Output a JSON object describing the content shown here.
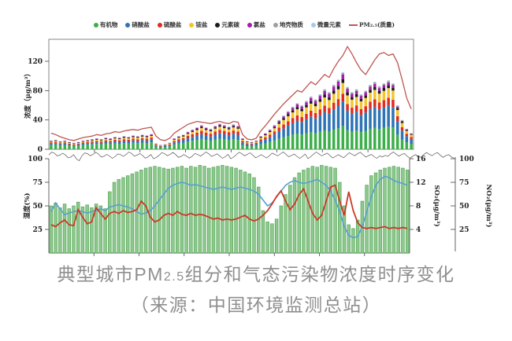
{
  "figure": {
    "caption_line1_prefix": "典型城市PM",
    "caption_line1_sub": "2.5",
    "caption_line1_suffix": "组分和气态污染物浓度时序变化",
    "caption_line2": "（来源：中国环境监测总站）"
  },
  "legend": {
    "items": [
      {
        "label": "有机物",
        "color": "#3cae4a",
        "type": "dot"
      },
      {
        "label": "硝酸盐",
        "color": "#2e74b5",
        "type": "dot"
      },
      {
        "label": "硫酸盐",
        "color": "#e02b20",
        "type": "dot"
      },
      {
        "label": "铵盐",
        "color": "#f4c430",
        "type": "dot"
      },
      {
        "label": "元素碳",
        "color": "#1a1a1a",
        "type": "dot"
      },
      {
        "label": "氯盐",
        "color": "#a21caf",
        "type": "dot"
      },
      {
        "label": "地壳物质",
        "color": "#9e9e9e",
        "type": "dot"
      },
      {
        "label": "微量元素",
        "color": "#a9c9e8",
        "type": "dot"
      },
      {
        "label": "PM₂.₅(质量)",
        "color": "#bf5650",
        "type": "line"
      }
    ]
  },
  "chart_data": [
    {
      "id": "pm25-composition",
      "type": "bar",
      "stacked": true,
      "ylabel": "浓度（μg/m³）",
      "ylim": [
        0,
        150
      ],
      "yticks": [
        0,
        40,
        80,
        120
      ],
      "x_note": "时间序列，横轴日期刻度文字过小不可辨认（80个采样点）",
      "grid": false,
      "legend_position": "top",
      "components": [
        {
          "name": "有机物",
          "color": "#3cae4a"
        },
        {
          "name": "硝酸盐",
          "color": "#2e74b5"
        },
        {
          "name": "硫酸盐",
          "color": "#e02b20"
        },
        {
          "name": "铵盐",
          "color": "#f4c430"
        },
        {
          "name": "元素碳",
          "color": "#1a1a1a"
        },
        {
          "name": "氯盐",
          "color": "#a21caf"
        },
        {
          "name": "地壳物质",
          "color": "#9e9e9e"
        },
        {
          "name": "微量元素",
          "color": "#a9c9e8"
        }
      ],
      "stack_totals": [
        12,
        13,
        11,
        12,
        10,
        9,
        10,
        12,
        13,
        14,
        15,
        14,
        16,
        15,
        17,
        16,
        18,
        17,
        19,
        18,
        20,
        19,
        21,
        8,
        6,
        7,
        9,
        15,
        18,
        20,
        24,
        27,
        30,
        33,
        30,
        28,
        32,
        35,
        33,
        31,
        34,
        32,
        15,
        11,
        10,
        12,
        18,
        22,
        27,
        33,
        40,
        46,
        52,
        58,
        63,
        60,
        66,
        72,
        68,
        75,
        82,
        78,
        88,
        95,
        105,
        85,
        78,
        82,
        75,
        80,
        88,
        92,
        86,
        90,
        94,
        90,
        60,
        40,
        28,
        22
      ],
      "composition_share_anchors": [
        {
          "at": 0.0,
          "shares": {
            "有机物": 0.5,
            "硝酸盐": 0.14,
            "硫酸盐": 0.12,
            "铵盐": 0.1,
            "元素碳": 0.06,
            "氯盐": 0.04,
            "地壳物质": 0.02,
            "微量元素": 0.02
          }
        },
        {
          "at": 0.45,
          "shares": {
            "有机物": 0.42,
            "硝酸盐": 0.2,
            "硫酸盐": 0.14,
            "铵盐": 0.12,
            "元素碳": 0.05,
            "氯盐": 0.04,
            "地壳物质": 0.02,
            "微量元素": 0.01
          }
        },
        {
          "at": 0.8,
          "shares": {
            "有机物": 0.3,
            "硝酸盐": 0.32,
            "硫酸盐": 0.1,
            "铵盐": 0.14,
            "元素碳": 0.05,
            "氯盐": 0.06,
            "地壳物质": 0.02,
            "微量元素": 0.01
          }
        },
        {
          "at": 1.0,
          "shares": {
            "有机物": 0.34,
            "硝酸盐": 0.3,
            "硫酸盐": 0.12,
            "铵盐": 0.14,
            "元素碳": 0.04,
            "氯盐": 0.03,
            "地壳物质": 0.02,
            "微量元素": 0.01
          }
        }
      ],
      "overlay_line": {
        "name": "PM₂.₅(质量)",
        "color": "#bf5650",
        "values": [
          22,
          20,
          17,
          15,
          13,
          12,
          14,
          16,
          17,
          18,
          20,
          19,
          21,
          22,
          24,
          23,
          25,
          26,
          27,
          26,
          28,
          29,
          30,
          18,
          13,
          12,
          15,
          22,
          26,
          30,
          34,
          36,
          38,
          37,
          36,
          35,
          37,
          38,
          36,
          35,
          38,
          37,
          20,
          14,
          13,
          15,
          25,
          32,
          40,
          48,
          55,
          62,
          68,
          74,
          80,
          78,
          85,
          92,
          88,
          95,
          102,
          98,
          110,
          120,
          128,
          140,
          130,
          118,
          108,
          102,
          112,
          122,
          130,
          132,
          128,
          130,
          118,
          95,
          70,
          55
        ]
      }
    },
    {
      "id": "gas-humidity",
      "type": "bar",
      "x_note": "与上图相同的时间序列（80个采样点）",
      "left_axis": {
        "label": "湿度(%)",
        "ticks": [
          25,
          50,
          75,
          100
        ],
        "range": [
          0,
          100
        ]
      },
      "right_axis_1": {
        "label": "SO₂(μg/m³)",
        "ticks": [
          4,
          8,
          12,
          16
        ],
        "range": [
          0,
          16
        ]
      },
      "right_axis_2": {
        "label": "NO₂(μg/m³)",
        "ticks": [
          25,
          50,
          75,
          100
        ],
        "range": [
          0,
          100
        ]
      },
      "humidity_bars": {
        "name": "湿度",
        "color": "#8cc98c",
        "edge_color": "#4f9e50",
        "values": [
          50,
          53,
          48,
          52,
          47,
          50,
          54,
          49,
          51,
          48,
          52,
          50,
          47,
          65,
          75,
          78,
          80,
          82,
          84,
          86,
          88,
          90,
          91,
          92,
          91,
          90,
          89,
          90,
          91,
          92,
          90,
          92,
          91,
          93,
          92,
          90,
          91,
          92,
          93,
          92,
          91,
          90,
          88,
          86,
          84,
          80,
          70,
          45,
          33,
          31,
          36,
          50,
          62,
          72,
          80,
          85,
          88,
          90,
          92,
          91,
          93,
          92,
          91,
          90,
          75,
          50,
          30,
          26,
          35,
          55,
          72,
          82,
          85,
          88,
          90,
          91,
          92,
          91,
          90,
          88
        ]
      },
      "so2_line": {
        "name": "SO₂",
        "color": "#56a0d3",
        "values": [
          7,
          8.5,
          7.5,
          6.5,
          6.8,
          7,
          7.2,
          7,
          6.8,
          7,
          7.3,
          7.5,
          7.2,
          7.8,
          8,
          8.2,
          8,
          7.8,
          7.5,
          7,
          6.6,
          6.8,
          7.2,
          8,
          9,
          10,
          11,
          11.5,
          11.8,
          12,
          11.8,
          11.5,
          11.6,
          11.4,
          11.2,
          11,
          10.8,
          11,
          11.2,
          11,
          10.8,
          11,
          11.2,
          11,
          10.8,
          10.5,
          10,
          9,
          8,
          8.5,
          9.5,
          10.5,
          11.5,
          12,
          12.3,
          12,
          11.8,
          12,
          12.2,
          12.5,
          12,
          11.5,
          10.5,
          9,
          7,
          4.5,
          3,
          2.6,
          2.8,
          4.5,
          7,
          9.5,
          11.5,
          12.5,
          13,
          12.8,
          12.3,
          12,
          11.8,
          11.5
        ]
      },
      "no2_line": {
        "name": "NO₂",
        "color": "#cb3a28",
        "values": [
          30,
          28,
          32,
          35,
          30,
          29,
          46,
          38,
          31,
          33,
          48,
          42,
          36,
          42,
          44,
          42,
          45,
          43,
          44,
          46,
          55,
          50,
          38,
          33,
          35,
          40,
          42,
          40,
          44,
          41,
          40,
          42,
          40,
          41,
          40,
          38,
          36,
          37,
          35,
          36,
          35,
          36,
          38,
          40,
          36,
          34,
          36,
          40,
          45,
          52,
          60,
          66,
          55,
          46,
          52,
          62,
          68,
          55,
          42,
          35,
          40,
          55,
          70,
          72,
          55,
          40,
          65,
          45,
          32,
          27,
          26,
          27,
          26,
          27,
          28,
          26,
          27,
          26,
          27,
          26
        ]
      }
    }
  ]
}
